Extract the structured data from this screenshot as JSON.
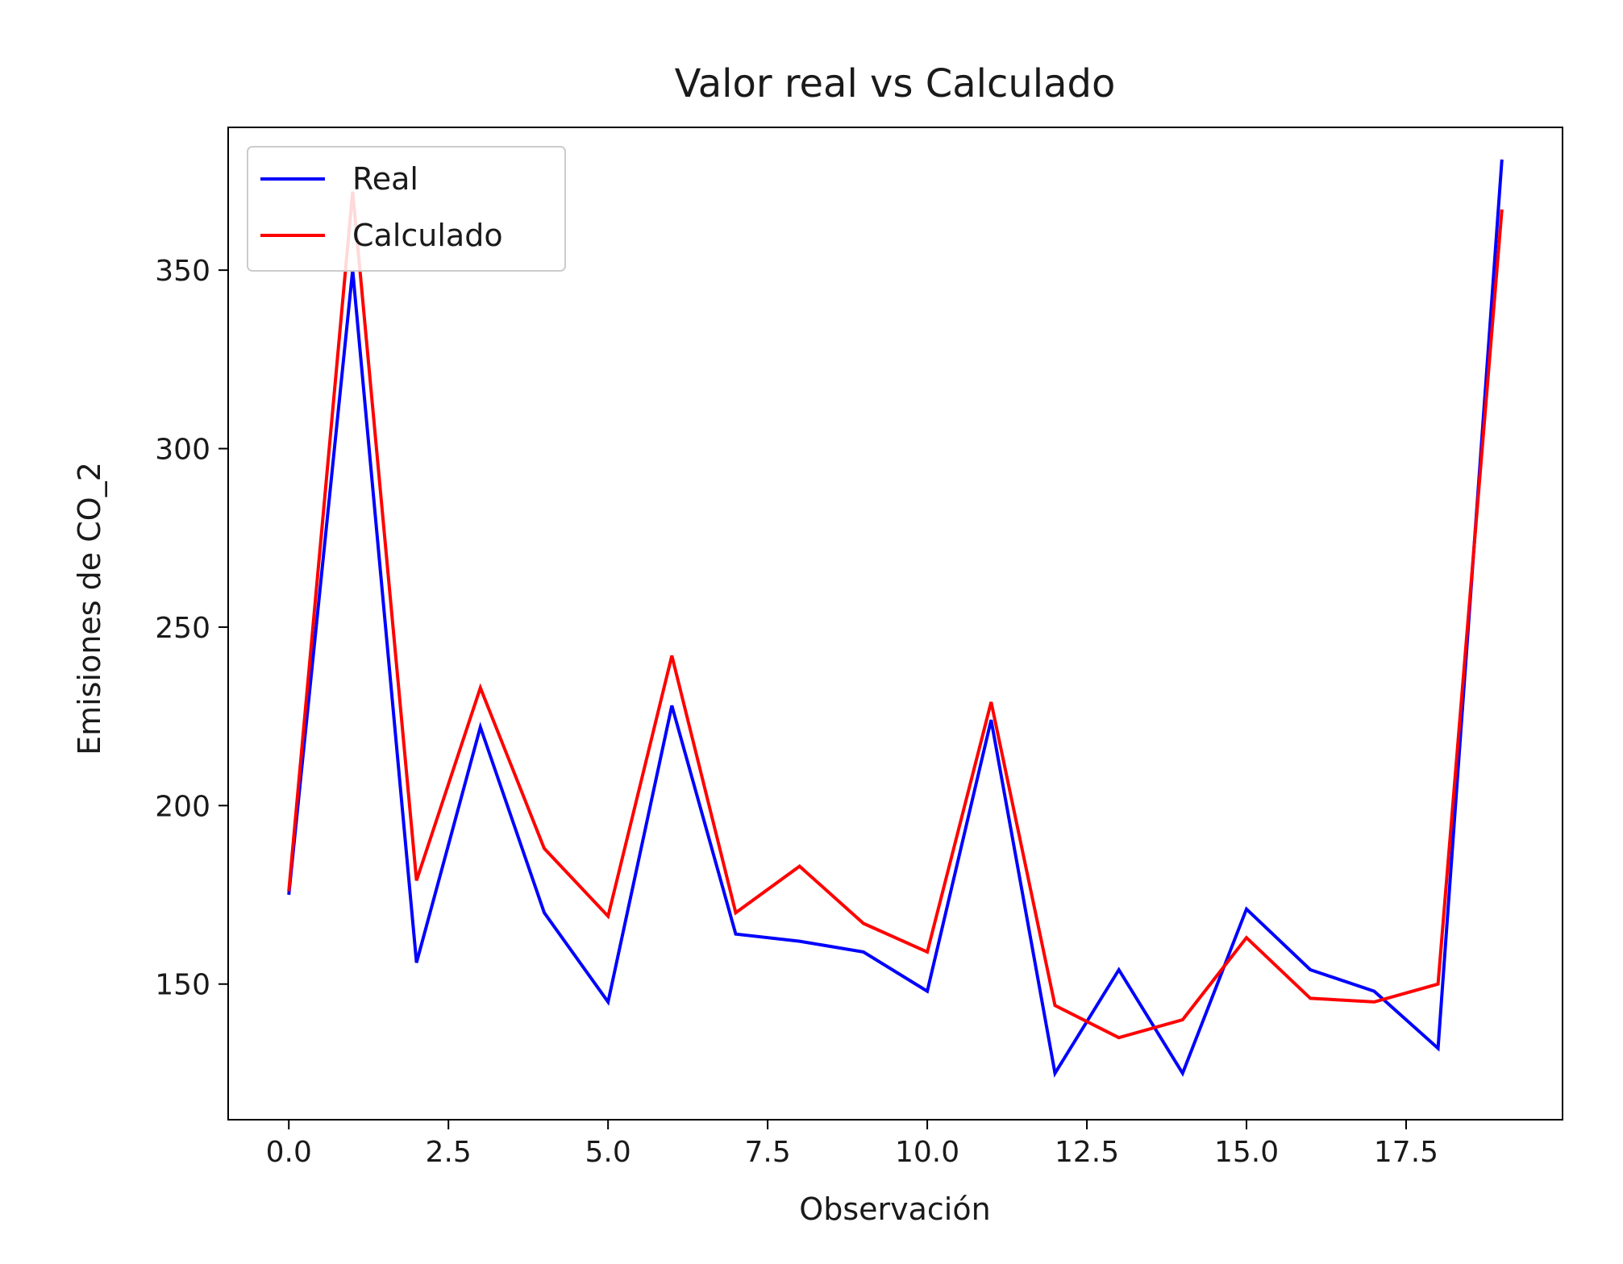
{
  "chart_data": {
    "type": "line",
    "title": "Valor real vs Calculado",
    "xlabel": "Observación",
    "ylabel": "Emisiones de CO_2",
    "xlim": [
      -0.95,
      19.95
    ],
    "ylim": [
      112,
      390
    ],
    "xticks": [
      0.0,
      2.5,
      5.0,
      7.5,
      10.0,
      12.5,
      15.0,
      17.5
    ],
    "xtick_labels": [
      "0.0",
      "2.5",
      "5.0",
      "7.5",
      "10.0",
      "12.5",
      "15.0",
      "17.5"
    ],
    "yticks": [
      150,
      200,
      250,
      300,
      350
    ],
    "ytick_labels": [
      "150",
      "200",
      "250",
      "300",
      "350"
    ],
    "grid": false,
    "legend_position": "upper-left",
    "x": [
      0,
      1,
      2,
      3,
      4,
      5,
      6,
      7,
      8,
      9,
      10,
      11,
      12,
      13,
      14,
      15,
      16,
      17,
      18,
      19
    ],
    "series": [
      {
        "name": "Real",
        "color": "#0000ff",
        "values": [
          175,
          350,
          156,
          222,
          170,
          145,
          228,
          164,
          162,
          159,
          148,
          224,
          125,
          154,
          125,
          171,
          154,
          148,
          132,
          381
        ]
      },
      {
        "name": "Calculado",
        "color": "#ff0000",
        "values": [
          176,
          372,
          179,
          233,
          188,
          169,
          242,
          170,
          183,
          167,
          159,
          229,
          144,
          135,
          140,
          163,
          146,
          145,
          150,
          367
        ]
      }
    ]
  }
}
